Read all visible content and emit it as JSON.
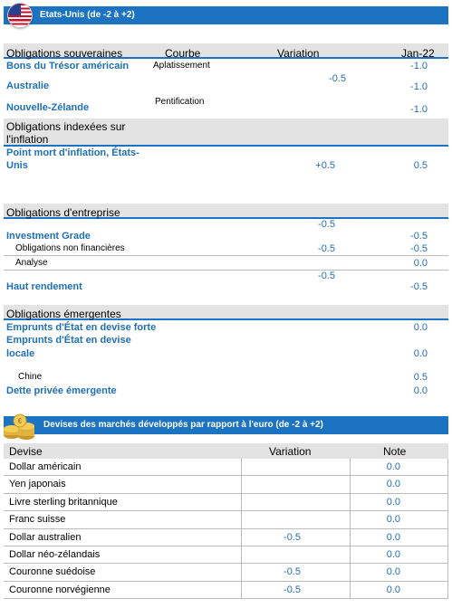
{
  "header1": {
    "title": "Etats-Unis (de -2 à +2)",
    "flag_icon": "us-flag-icon",
    "color": "#1b73c1"
  },
  "sovereign": {
    "title": "Obligations souveraines",
    "col_curve": "Courbe",
    "col_variation": "Variation",
    "col_date": "Jan-22",
    "rows": [
      {
        "label": "Bons du Trésor américain",
        "curve": "Aplatissement",
        "jan": "-1.0"
      },
      {
        "label": "Australie",
        "jan": "-1.0"
      },
      {
        "label": "Nouvelle-Zélande",
        "curve": "Pentification",
        "jan": "-1.0"
      }
    ],
    "variation_merged": "-0.5"
  },
  "inflation": {
    "title_line1": "Obligations indexées sur",
    "title_line2": "l'inflation",
    "rows": [
      {
        "label_line1": "Point mort d'inflation, États-",
        "label_line2": "Unis",
        "variation": "+0.5",
        "jan": "0.5"
      }
    ]
  },
  "corporate": {
    "title": "Obligations d'entreprise",
    "rows": [
      {
        "label": "Investment Grade",
        "variation_above": "-0.5",
        "jan": "-0.5"
      },
      {
        "label": "Obligations non financières",
        "variation": "-0.5",
        "jan": "-0.5"
      },
      {
        "label": "Analyse",
        "jan": "0.0"
      },
      {
        "label": "Haut rendement",
        "variation_above": "-0.5",
        "jan": "-0.5"
      }
    ]
  },
  "emerging": {
    "title": "Obligations émergentes",
    "rows": [
      {
        "label": "Emprunts d'État en devise forte",
        "jan": "0.0"
      },
      {
        "label_line1": "Emprunts d'État en devise",
        "label_line2": "locale",
        "jan": "0.0"
      },
      {
        "label": "Chine",
        "jan": "0.5"
      },
      {
        "label": "Dette privée émergente",
        "jan": "0.0"
      }
    ]
  },
  "header2": {
    "title": "Devises des marchés développés par rapport à l'euro (de -2 à +2)",
    "coins_icon": "gold-coins-icon"
  },
  "fx": {
    "col_name": "Devise",
    "col_variation": "Variation",
    "col_note": "Note",
    "rows": [
      {
        "name": "Dollar américain",
        "variation": "",
        "note": "0.0"
      },
      {
        "name": "Yen japonais",
        "variation": "",
        "note": "0.0"
      },
      {
        "name": "Livre sterling britannique",
        "variation": "",
        "note": "0.0"
      },
      {
        "name": "Franc suisse",
        "variation": "",
        "note": "0.0"
      },
      {
        "name": "Dollar australien",
        "variation": "-0.5",
        "note": "0.0"
      },
      {
        "name": "Dollar néo-zélandais",
        "variation": "",
        "note": "0.0"
      },
      {
        "name": "Couronne suédoise",
        "variation": "-0.5",
        "note": "0.0"
      },
      {
        "name": "Couronne norvégienne",
        "variation": "-0.5",
        "note": "0.0"
      }
    ]
  }
}
